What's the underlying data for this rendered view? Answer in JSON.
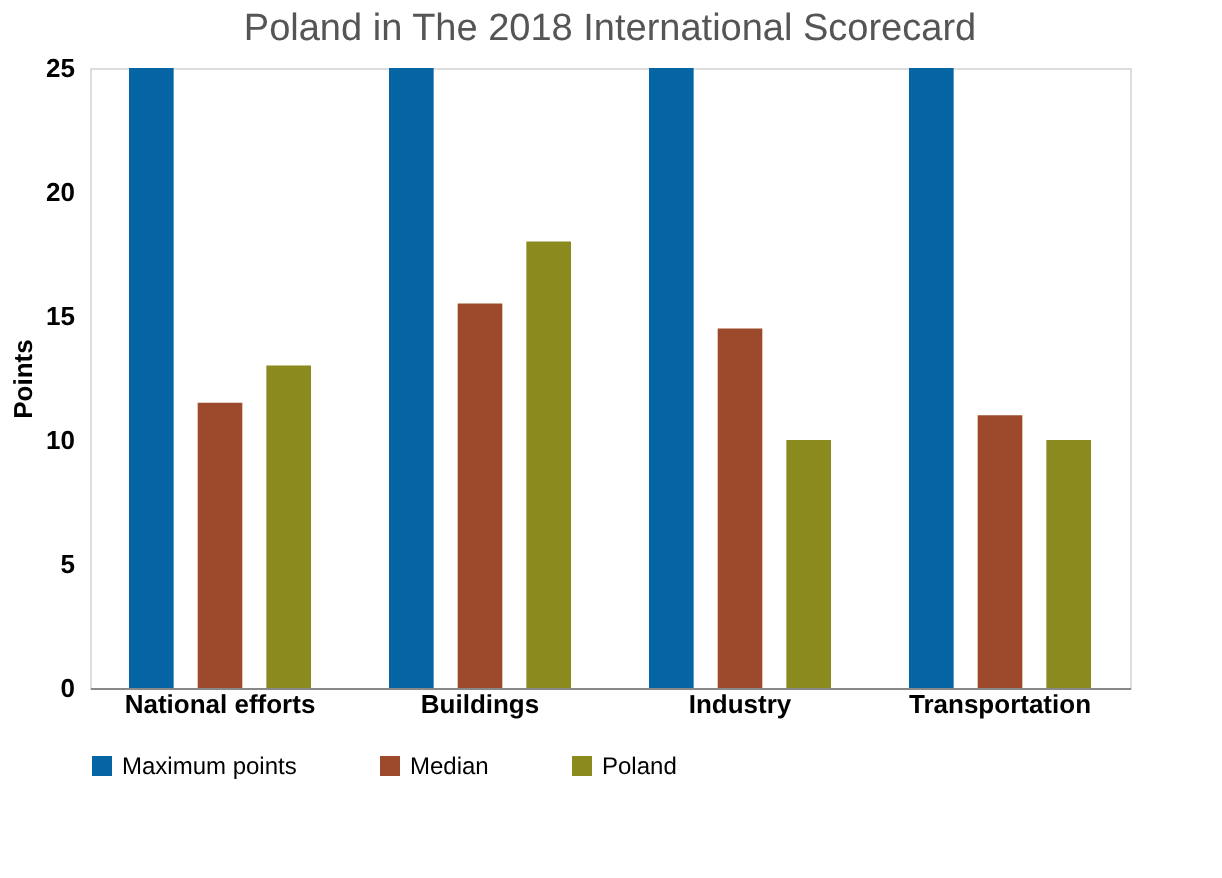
{
  "chart_data": {
    "type": "bar",
    "title": "Poland in The 2018 International Scorecard",
    "ylabel": "Points",
    "categories": [
      "National efforts",
      "Buildings",
      "Industry",
      "Transportation"
    ],
    "series": [
      {
        "name": "Maximum points",
        "color": "#0564a3",
        "values": [
          25,
          25,
          25,
          25
        ]
      },
      {
        "name": "Median",
        "color": "#9c4a2b",
        "values": [
          11.5,
          15.5,
          14.5,
          11
        ]
      },
      {
        "name": "Poland",
        "color": "#8a8a1f",
        "values": [
          13,
          18,
          10,
          10
        ]
      }
    ],
    "ylim": [
      0,
      25
    ],
    "yticks": [
      0,
      5,
      10,
      15,
      20,
      25
    ],
    "grid": false,
    "legend": "bottom"
  }
}
